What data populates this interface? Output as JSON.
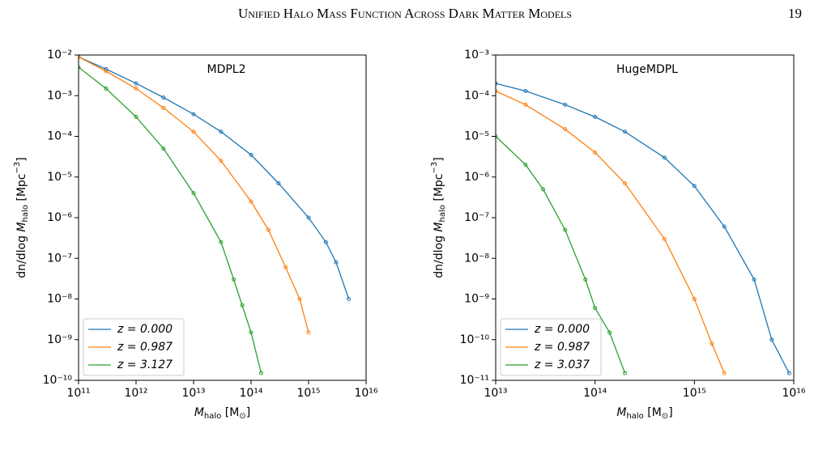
{
  "header": {
    "title": "Unified Halo Mass Function Across Dark Matter Models",
    "page": "19"
  },
  "chart_data": [
    {
      "type": "line",
      "title": "MDPL2",
      "log_x": true,
      "log_y": true,
      "xlabel": {
        "var": "M",
        "sub": "halo",
        "unit": " [M",
        "sub2": "⊙",
        "end": "]"
      },
      "ylabel": {
        "text": "dn/dlog ",
        "var": "M",
        "sub": "halo",
        "unit": " [Mpc",
        "sup": "−3",
        "end": "]"
      },
      "xlim": [
        100000000000.0,
        1e+16
      ],
      "ylim": [
        1e-10,
        0.01
      ],
      "xticks": [
        {
          "value": 100000000000.0,
          "label": "10¹¹"
        },
        {
          "value": 1000000000000.0,
          "label": "10¹²"
        },
        {
          "value": 10000000000000.0,
          "label": "10¹³"
        },
        {
          "value": 100000000000000.0,
          "label": "10¹⁴"
        },
        {
          "value": 1000000000000000.0,
          "label": "10¹⁵"
        },
        {
          "value": 1e+16,
          "label": "10¹⁶"
        }
      ],
      "yticks": [
        {
          "value": 1e-10,
          "label": "10⁻¹⁰"
        },
        {
          "value": 1e-09,
          "label": "10⁻⁹"
        },
        {
          "value": 1e-08,
          "label": "10⁻⁸"
        },
        {
          "value": 1e-07,
          "label": "10⁻⁷"
        },
        {
          "value": 1e-06,
          "label": "10⁻⁶"
        },
        {
          "value": 1e-05,
          "label": "10⁻⁵"
        },
        {
          "value": 0.0001,
          "label": "10⁻⁴"
        },
        {
          "value": 0.001,
          "label": "10⁻³"
        },
        {
          "value": 0.01,
          "label": "10⁻²"
        }
      ],
      "legend": "lower left",
      "series": [
        {
          "name": "z = 0.000",
          "color": "#1f77b4",
          "x": [
            100000000000.0,
            300000000000.0,
            1000000000000.0,
            3000000000000.0,
            10000000000000.0,
            30000000000000.0,
            100000000000000.0,
            300000000000000.0,
            1000000000000000.0,
            2000000000000000.0,
            3000000000000000.0,
            5000000000000000.0
          ],
          "values": [
            0.009,
            0.0045,
            0.002,
            0.0009,
            0.00035,
            0.00013,
            3.5e-05,
            7e-06,
            1e-06,
            2.5e-07,
            8e-08,
            1e-08
          ]
        },
        {
          "name": "z = 0.987",
          "color": "#ff7f0e",
          "x": [
            100000000000.0,
            300000000000.0,
            1000000000000.0,
            3000000000000.0,
            10000000000000.0,
            30000000000000.0,
            100000000000000.0,
            200000000000000.0,
            400000000000000.0,
            700000000000000.0,
            1000000000000000.0
          ],
          "values": [
            0.009,
            0.004,
            0.0015,
            0.0005,
            0.00013,
            2.5e-05,
            2.5e-06,
            5e-07,
            6e-08,
            1e-08,
            1.5e-09
          ]
        },
        {
          "name": "z = 3.127",
          "color": "#2ca02c",
          "x": [
            100000000000.0,
            300000000000.0,
            1000000000000.0,
            3000000000000.0,
            10000000000000.0,
            30000000000000.0,
            50000000000000.0,
            70000000000000.0,
            100000000000000.0,
            150000000000000.0
          ],
          "values": [
            0.005,
            0.0015,
            0.0003,
            5e-05,
            4e-06,
            2.5e-07,
            3e-08,
            7e-09,
            1.5e-09,
            1.5e-10
          ]
        }
      ]
    },
    {
      "type": "line",
      "title": "HugeMDPL",
      "log_x": true,
      "log_y": true,
      "xlabel": {
        "var": "M",
        "sub": "halo",
        "unit": " [M",
        "sub2": "⊙",
        "end": "]"
      },
      "ylabel": {
        "text": "dn/dlog ",
        "var": "M",
        "sub": "halo",
        "unit": " [Mpc",
        "sup": "−3",
        "end": "]"
      },
      "xlim": [
        10000000000000.0,
        1e+16
      ],
      "ylim": [
        1e-11,
        0.001
      ],
      "xticks": [
        {
          "value": 10000000000000.0,
          "label": "10¹³"
        },
        {
          "value": 100000000000000.0,
          "label": "10¹⁴"
        },
        {
          "value": 1000000000000000.0,
          "label": "10¹⁵"
        },
        {
          "value": 1e+16,
          "label": "10¹⁶"
        }
      ],
      "yticks": [
        {
          "value": 1e-11,
          "label": "10⁻¹¹"
        },
        {
          "value": 1e-10,
          "label": "10⁻¹⁰"
        },
        {
          "value": 1e-09,
          "label": "10⁻⁹"
        },
        {
          "value": 1e-08,
          "label": "10⁻⁸"
        },
        {
          "value": 1e-07,
          "label": "10⁻⁷"
        },
        {
          "value": 1e-06,
          "label": "10⁻⁶"
        },
        {
          "value": 1e-05,
          "label": "10⁻⁵"
        },
        {
          "value": 0.0001,
          "label": "10⁻⁴"
        },
        {
          "value": 0.001,
          "label": "10⁻³"
        }
      ],
      "legend": "lower left",
      "series": [
        {
          "name": "z = 0.000",
          "color": "#1f77b4",
          "x": [
            10000000000000.0,
            20000000000000.0,
            50000000000000.0,
            100000000000000.0,
            200000000000000.0,
            500000000000000.0,
            1000000000000000.0,
            2000000000000000.0,
            4000000000000000.0,
            6000000000000000.0,
            9000000000000000.0
          ],
          "values": [
            0.0002,
            0.00013,
            6e-05,
            3e-05,
            1.3e-05,
            3e-06,
            6e-07,
            6e-08,
            3e-09,
            1e-10,
            1.5e-11
          ]
        },
        {
          "name": "z = 0.987",
          "color": "#ff7f0e",
          "x": [
            10000000000000.0,
            20000000000000.0,
            50000000000000.0,
            100000000000000.0,
            200000000000000.0,
            500000000000000.0,
            1000000000000000.0,
            1500000000000000.0,
            2000000000000000.0
          ],
          "values": [
            0.00013,
            6e-05,
            1.5e-05,
            4e-06,
            7e-07,
            3e-08,
            1e-09,
            8e-11,
            1.5e-11
          ]
        },
        {
          "name": "z = 3.037",
          "color": "#2ca02c",
          "x": [
            10000000000000.0,
            20000000000000.0,
            30000000000000.0,
            50000000000000.0,
            80000000000000.0,
            100000000000000.0,
            140000000000000.0,
            200000000000000.0
          ],
          "values": [
            1e-05,
            2e-06,
            5e-07,
            5e-08,
            3e-09,
            6e-10,
            1.5e-10,
            1.5e-11
          ]
        }
      ]
    }
  ]
}
